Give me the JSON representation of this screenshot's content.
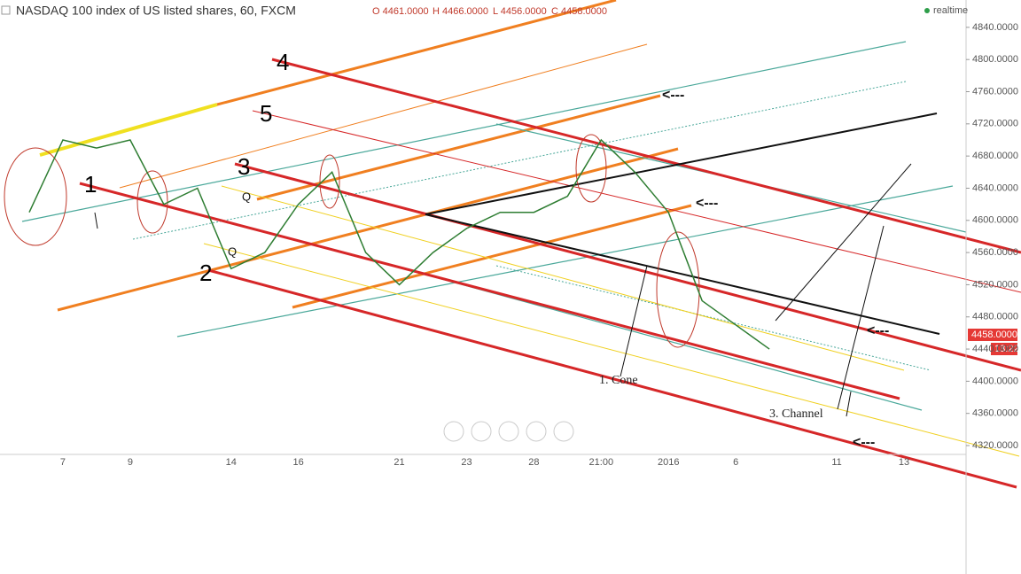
{
  "header": {
    "title": "NASDAQ 100 index of US listed shares, 60, FXCM",
    "open": "O 4461.0000",
    "high": "H 4466.0000",
    "low": "L 4456.0000",
    "close": "C 4458.0000",
    "status": "realtime",
    "last_price": "4458.0000",
    "countdown": "13:22"
  },
  "annotations": {
    "labels": [
      "1",
      "2",
      "3",
      "4",
      "5"
    ],
    "q": [
      "Q",
      "Q"
    ],
    "cone": "1. Cone",
    "channel": "3. Channel",
    "arrows": [
      "<---",
      "<---",
      "<---",
      "<---"
    ]
  },
  "chart_data": {
    "type": "line",
    "categories": [
      null,
      "7",
      null,
      "9",
      null,
      null,
      "14",
      null,
      "16",
      null,
      null,
      "21",
      null,
      "23",
      null,
      "28",
      null,
      "21:00",
      null,
      "2016",
      null,
      "6",
      null,
      null,
      "11",
      null,
      "13"
    ],
    "series": [
      {
        "name": "NASDAQ 100",
        "color": "#2e7d32",
        "values": [
          4610,
          4700,
          4690,
          4700,
          4620,
          4640,
          4540,
          4560,
          4620,
          4660,
          4560,
          4520,
          4560,
          4590,
          4610,
          4610,
          4630,
          4700,
          4660,
          4610,
          4500,
          4470,
          4440,
          null,
          null,
          null,
          null
        ]
      }
    ],
    "ylim": [
      4309,
      4874
    ],
    "yticks": [
      {
        "value": 4320,
        "label": "4320.0000"
      },
      {
        "value": 4360,
        "label": "4360.0000"
      },
      {
        "value": 4400,
        "label": "4400.0000"
      },
      {
        "value": 4440,
        "label": "4440.0000"
      },
      {
        "value": 4480,
        "label": "4480.0000"
      },
      {
        "value": 4520,
        "label": "4520.0000"
      },
      {
        "value": 4560,
        "label": "4560.0000"
      },
      {
        "value": 4600,
        "label": "4600.0000"
      },
      {
        "value": 4640,
        "label": "4640.0000"
      },
      {
        "value": 4680,
        "label": "4680.0000"
      },
      {
        "value": 4720,
        "label": "4720.0000"
      },
      {
        "value": 4760,
        "label": "4760.0000"
      },
      {
        "value": 4800,
        "label": "4800.0000"
      },
      {
        "value": 4840,
        "label": "4840.0000"
      }
    ]
  }
}
